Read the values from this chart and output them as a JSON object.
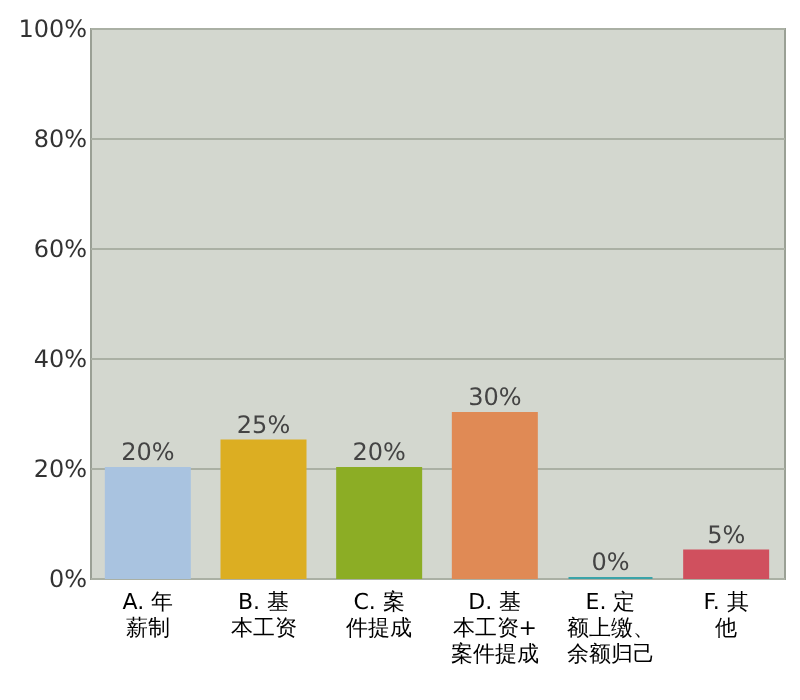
{
  "chart_data": {
    "type": "bar",
    "categories": [
      "A. 年薪制",
      "B. 基本工资",
      "C. 案件提成",
      "D. 基本工资+案件提成",
      "E. 定额上缴、余额归己",
      "F. 其他"
    ],
    "values": [
      20,
      25,
      20,
      30,
      0,
      5
    ],
    "colors": [
      "#a9c3e0",
      "#dcae22",
      "#8cad25",
      "#e08a55",
      "#3aa3a8",
      "#d0505e"
    ],
    "ylim": [
      0,
      100
    ],
    "yticks": [
      {
        "value": 0,
        "label": "0%"
      },
      {
        "value": 20,
        "label": "20%"
      },
      {
        "value": 40,
        "label": "40%"
      },
      {
        "value": 60,
        "label": "60%"
      },
      {
        "value": 80,
        "label": "80%"
      },
      {
        "value": 100,
        "label": "100%"
      }
    ],
    "grid": "y",
    "value_labels": [
      "20%",
      "25%",
      "20%",
      "30%",
      "0%",
      "5%"
    ]
  }
}
